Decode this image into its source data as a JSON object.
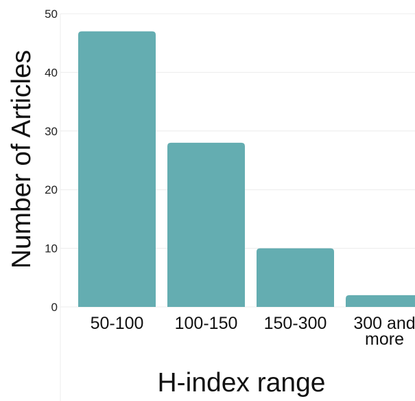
{
  "chart_data": {
    "type": "bar",
    "categories": [
      "50-100",
      "100-150",
      "150-300",
      "300 and more"
    ],
    "values": [
      47,
      28,
      10,
      2
    ],
    "title": "",
    "xlabel": "H-index range",
    "ylabel": "Number of Articles",
    "ylim": [
      0,
      50
    ],
    "yticks": [
      0,
      10,
      20,
      30,
      40,
      50
    ],
    "grid": true,
    "legend": "none",
    "colors": {
      "bar": "#64adb1",
      "grid": "#ececec"
    }
  }
}
